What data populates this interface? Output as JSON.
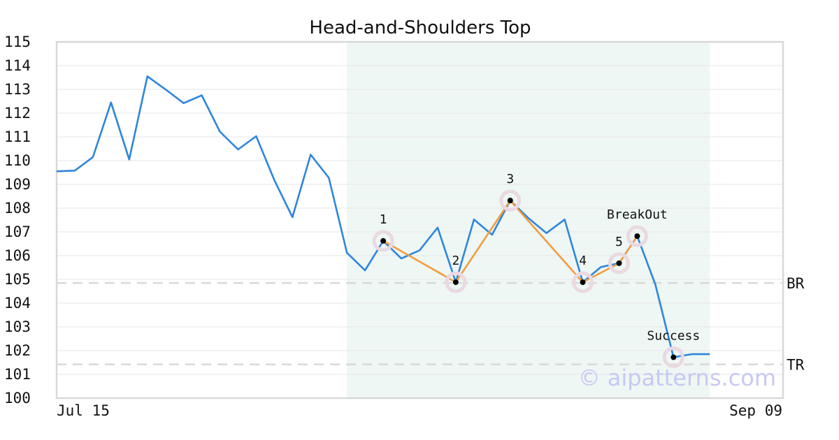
{
  "chart_data": {
    "type": "line",
    "title": "Head-and-Shoulders Top",
    "ylim": [
      100,
      115
    ],
    "y_ticks": [
      100,
      101,
      102,
      103,
      104,
      105,
      106,
      107,
      108,
      109,
      110,
      111,
      112,
      113,
      114,
      115
    ],
    "x_tick_labels": [
      "Jul 15",
      "Sep 09"
    ],
    "grid": true,
    "series": [
      {
        "color": "#2e86de",
        "values": [
          109.55,
          109.58,
          110.15,
          112.45,
          110.05,
          113.55,
          113.0,
          112.42,
          112.75,
          111.22,
          110.47,
          111.03,
          109.18,
          107.62,
          110.25,
          109.28,
          106.12,
          105.38,
          106.62,
          105.88,
          106.22,
          107.18,
          104.88,
          107.52,
          106.88,
          108.32,
          107.58,
          106.95,
          107.52,
          104.88,
          105.52,
          105.68,
          106.82,
          104.78,
          101.72,
          101.85,
          101.85
        ]
      }
    ],
    "pattern_line": {
      "color": "#f39c3e",
      "x_index": [
        18,
        22,
        25,
        29,
        31,
        32
      ],
      "y": [
        106.62,
        104.88,
        108.32,
        104.88,
        105.68,
        106.82
      ]
    },
    "markers": [
      {
        "label": "1",
        "x_index": 18,
        "y": 106.62
      },
      {
        "label": "2",
        "x_index": 22,
        "y": 104.88
      },
      {
        "label": "3",
        "x_index": 25,
        "y": 108.32
      },
      {
        "label": "4",
        "x_index": 29,
        "y": 104.88
      },
      {
        "label": "5",
        "x_index": 31,
        "y": 105.68
      },
      {
        "label": "BreakOut",
        "x_index": 32,
        "y": 106.82
      },
      {
        "label": "Success",
        "x_index": 34,
        "y": 101.72
      }
    ],
    "levels": [
      {
        "label": "BR",
        "y": 104.85
      },
      {
        "label": "TR",
        "y": 101.42
      }
    ],
    "highlight_range_index": [
      16,
      36
    ],
    "watermark": "© aipatterns.com"
  }
}
